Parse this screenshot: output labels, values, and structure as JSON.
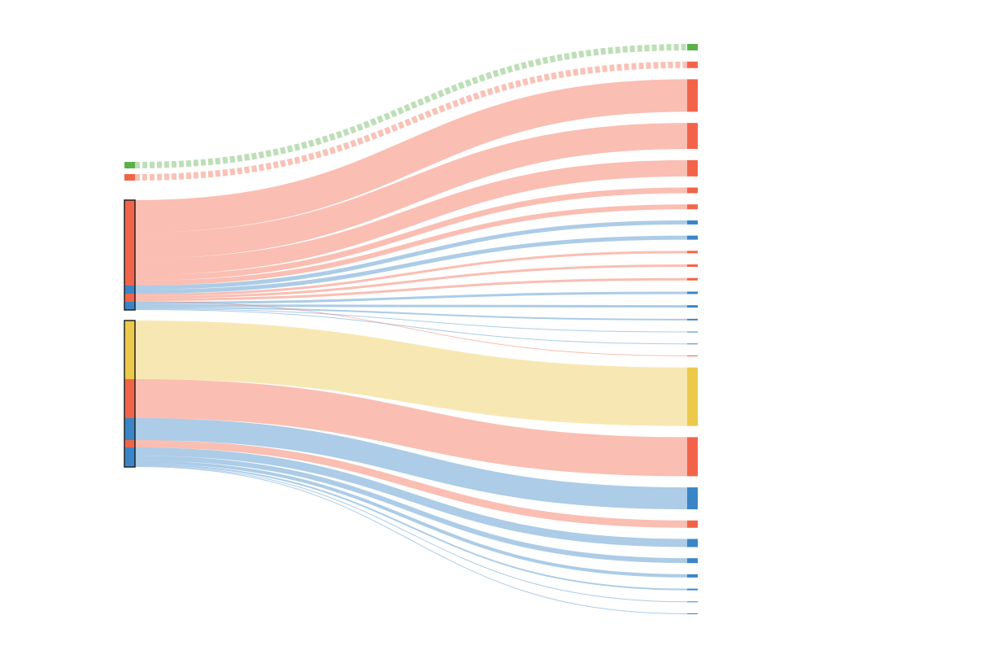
{
  "chart_data": {
    "type": "sankey",
    "nodes": [
      {
        "color": "#5bb04b"
      },
      {
        "color": "#f26449"
      },
      {
        "color": "#f26449"
      },
      {
        "color": "#3a85c6"
      },
      {
        "color": "#f26449"
      },
      {
        "color": "#3a85c6"
      },
      {
        "color": "#ecc94b"
      },
      {
        "color": "#f26449"
      },
      {
        "color": "#3a85c6"
      },
      {
        "color": "#f26449"
      },
      {
        "color": "#3a85c6"
      },
      {
        "color": "#5bb04b"
      },
      {
        "color": "#f26449"
      },
      {
        "color": "#f26449"
      },
      {
        "color": "#f26449"
      },
      {
        "color": "#f26449"
      },
      {
        "color": "#f26449"
      },
      {
        "color": "#f26449"
      },
      {
        "color": "#3a85c6"
      },
      {
        "color": "#3a85c6"
      },
      {
        "color": "#f26449"
      },
      {
        "color": "#f26449"
      },
      {
        "color": "#f26449"
      },
      {
        "color": "#3a85c6"
      },
      {
        "color": "#3a85c6"
      },
      {
        "color": "#3a85c6"
      },
      {
        "color": "#3a85c6"
      },
      {
        "color": "#3a85c6"
      },
      {
        "color": "#f26449"
      },
      {
        "color": "#ecc94b"
      },
      {
        "color": "#f26449"
      },
      {
        "color": "#3a85c6"
      },
      {
        "color": "#f26449"
      },
      {
        "color": "#3a85c6"
      },
      {
        "color": "#3a85c6"
      },
      {
        "color": "#3a85c6"
      },
      {
        "color": "#3a85c6"
      },
      {
        "color": "#3a85c6"
      },
      {
        "color": "#3a85c6"
      }
    ],
    "groups": [
      [
        2,
        3,
        4,
        5
      ],
      [
        6,
        7,
        8,
        9,
        10
      ]
    ],
    "links": [
      {
        "source": 0,
        "target": 11,
        "value": 8,
        "dashed": true
      },
      {
        "source": 1,
        "target": 12,
        "value": 8,
        "dashed": true
      },
      {
        "source": 2,
        "target": 13,
        "value": 40
      },
      {
        "source": 2,
        "target": 14,
        "value": 32
      },
      {
        "source": 2,
        "target": 15,
        "value": 20
      },
      {
        "source": 2,
        "target": 16,
        "value": 7
      },
      {
        "source": 2,
        "target": 17,
        "value": 6
      },
      {
        "source": 3,
        "target": 18,
        "value": 5
      },
      {
        "source": 3,
        "target": 19,
        "value": 5
      },
      {
        "source": 4,
        "target": 20,
        "value": 3
      },
      {
        "source": 4,
        "target": 21,
        "value": 3
      },
      {
        "source": 4,
        "target": 22,
        "value": 3
      },
      {
        "source": 5,
        "target": 23,
        "value": 3
      },
      {
        "source": 5,
        "target": 24,
        "value": 3
      },
      {
        "source": 5,
        "target": 25,
        "value": 2
      },
      {
        "source": 5,
        "target": 26,
        "value": 1
      },
      {
        "source": 5,
        "target": 27,
        "value": 1
      },
      {
        "source": 4,
        "target": 28,
        "value": 1
      },
      {
        "source": 6,
        "target": 29,
        "value": 72
      },
      {
        "source": 7,
        "target": 30,
        "value": 48
      },
      {
        "source": 8,
        "target": 31,
        "value": 27
      },
      {
        "source": 9,
        "target": 32,
        "value": 9
      },
      {
        "source": 10,
        "target": 33,
        "value": 10
      },
      {
        "source": 10,
        "target": 34,
        "value": 6
      },
      {
        "source": 10,
        "target": 35,
        "value": 4
      },
      {
        "source": 10,
        "target": 36,
        "value": 2
      },
      {
        "source": 10,
        "target": 37,
        "value": 1
      },
      {
        "source": 10,
        "target": 38,
        "value": 1
      }
    ]
  }
}
